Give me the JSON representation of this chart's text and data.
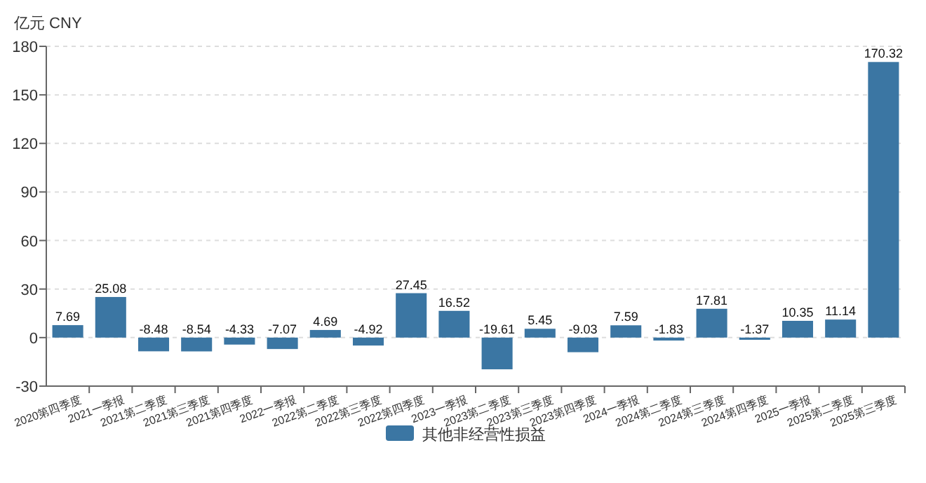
{
  "chart_data": {
    "type": "bar",
    "ylabel": "亿元  CNY",
    "categories": [
      "2020第四季度",
      "2021一季报",
      "2021第二季度",
      "2021第三季度",
      "2021第四季度",
      "2022一季报",
      "2022第二季度",
      "2022第三季度",
      "2022第四季度",
      "2023一季报",
      "2023第二季度",
      "2023第三季度",
      "2023第四季度",
      "2024一季报",
      "2024第二季度",
      "2024第三季度",
      "2024第四季度",
      "2025一季报",
      "2025第二季度",
      "2025第三季度"
    ],
    "series": [
      {
        "name": "其他非经营性损益",
        "color": "#3b76a3",
        "values": [
          7.69,
          25.08,
          -8.48,
          -8.54,
          -4.33,
          -7.07,
          4.69,
          -4.92,
          27.45,
          16.52,
          -19.61,
          5.45,
          -9.03,
          7.59,
          -1.83,
          17.81,
          -1.37,
          10.35,
          11.14,
          170.32
        ]
      }
    ],
    "ylim": [
      -30,
      180
    ],
    "yticks": [
      -30,
      0,
      30,
      60,
      90,
      120,
      150,
      180
    ],
    "grid": "y",
    "legend": "bottom",
    "data_labels": true
  }
}
